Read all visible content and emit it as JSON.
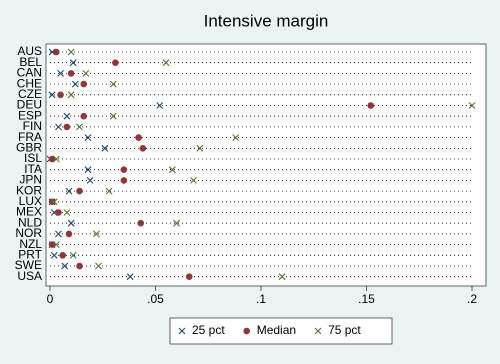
{
  "chart_data": {
    "type": "dot",
    "title": "Intensive margin",
    "categories": [
      "AUS",
      "BEL",
      "CAN",
      "CHE",
      "CZE",
      "DEU",
      "ESP",
      "FIN",
      "FRA",
      "GBR",
      "ISL",
      "ITA",
      "JPN",
      "KOR",
      "LUX",
      "MEX",
      "NLD",
      "NOR",
      "NZL",
      "PRT",
      "SWE",
      "USA"
    ],
    "series": [
      {
        "name": "25 pct",
        "color": "#1a476f",
        "marker": "x",
        "values": [
          0.001,
          0.011,
          0.005,
          0.012,
          0.001,
          0.052,
          0.008,
          0.004,
          0.018,
          0.026,
          0.0,
          0.018,
          0.019,
          0.009,
          0.001,
          0.002,
          0.01,
          0.004,
          0.001,
          0.002,
          0.007,
          0.038
        ]
      },
      {
        "name": "Median",
        "color": "#90353b",
        "marker": "circle",
        "values": [
          0.003,
          0.031,
          0.01,
          0.016,
          0.005,
          0.152,
          0.016,
          0.008,
          0.042,
          0.044,
          0.001,
          0.035,
          0.035,
          0.014,
          0.001,
          0.004,
          0.043,
          0.009,
          0.001,
          0.006,
          0.014,
          0.066
        ]
      },
      {
        "name": "75 pct",
        "color": "#55752f",
        "marker": "x",
        "values": [
          0.01,
          0.055,
          0.017,
          0.03,
          0.01,
          0.2,
          0.03,
          0.014,
          0.088,
          0.071,
          0.003,
          0.058,
          0.068,
          0.028,
          0.002,
          0.008,
          0.06,
          0.022,
          0.003,
          0.011,
          0.023,
          0.11
        ]
      }
    ],
    "xlim": [
      0,
      0.2
    ],
    "xticks": [
      0,
      {
        "value": 0.05,
        "label": ".05"
      },
      {
        "value": 0.1,
        "label": ".1"
      },
      {
        "value": 0.15,
        "label": ".15"
      },
      {
        "value": 0.2,
        "label": ".2"
      }
    ]
  }
}
